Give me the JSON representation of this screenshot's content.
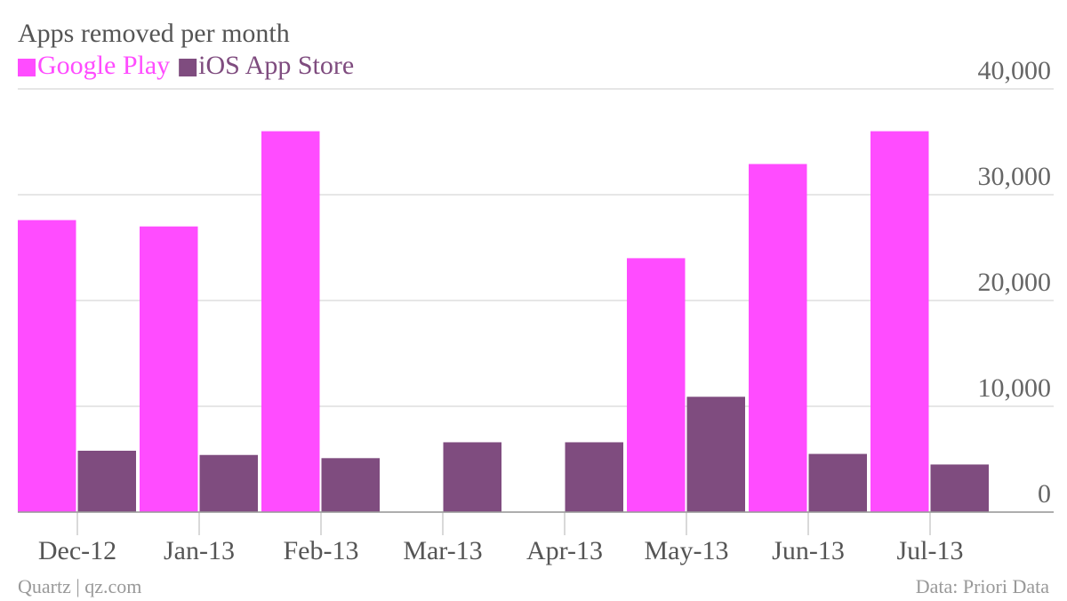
{
  "chart_data": {
    "type": "bar",
    "title": "Apps removed per month",
    "categories": [
      "Dec-12",
      "Jan-13",
      "Feb-13",
      "Mar-13",
      "Apr-13",
      "May-13",
      "Jun-13",
      "Jul-13"
    ],
    "series": [
      {
        "name": "Google Play",
        "color": "#ff4cff",
        "values": [
          27600,
          27000,
          36000,
          null,
          null,
          24000,
          32900,
          36000
        ]
      },
      {
        "name": "iOS App Store",
        "color": "#7f4c7f",
        "values": [
          5800,
          5400,
          5100,
          6600,
          6600,
          10900,
          5500,
          4500
        ]
      }
    ],
    "ylim": [
      0,
      40000
    ],
    "yticks": [
      0,
      {
        "value": 10000,
        "label": "10,000"
      },
      {
        "value": 20000,
        "label": "20,000"
      },
      {
        "value": 30000,
        "label": "30,000"
      },
      {
        "value": 40000,
        "label": "40,000"
      }
    ],
    "grid": true,
    "source_left": "Quartz | qz.com",
    "source_right": "Data: Priori Data"
  }
}
